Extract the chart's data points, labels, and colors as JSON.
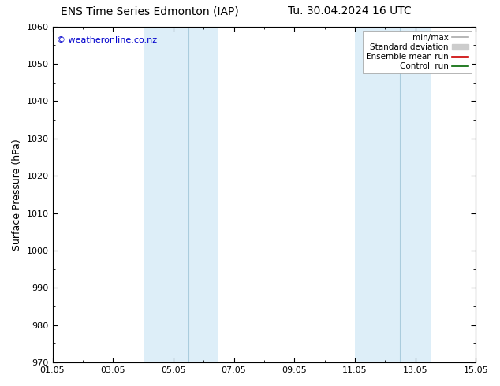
{
  "title_left": "ENS Time Series Edmonton (IAP)",
  "title_right": "Tu. 30.04.2024 16 UTC",
  "ylabel": "Surface Pressure (hPa)",
  "ylim": [
    970,
    1060
  ],
  "yticks": [
    970,
    980,
    990,
    1000,
    1010,
    1020,
    1030,
    1040,
    1050,
    1060
  ],
  "xlim": [
    0,
    14
  ],
  "xtick_labels": [
    "01.05",
    "03.05",
    "05.05",
    "07.05",
    "09.05",
    "11.05",
    "13.05",
    "15.05"
  ],
  "xtick_positions": [
    0,
    2,
    4,
    6,
    8,
    10,
    12,
    14
  ],
  "shade_bands": [
    {
      "start": 3.0,
      "end": 5.5,
      "color": "#ddeef8"
    },
    {
      "start": 10.0,
      "end": 12.5,
      "color": "#ddeef8"
    }
  ],
  "divider_lines": [
    4.5,
    11.5
  ],
  "divider_color": "#aaccdd",
  "copyright_text": "© weatheronline.co.nz",
  "copyright_color": "#0000cc",
  "background_color": "#ffffff",
  "legend_entries": [
    {
      "label": "min/max",
      "color": "#aaaaaa",
      "lw": 1.2
    },
    {
      "label": "Standard deviation",
      "color": "#cccccc",
      "lw": 5
    },
    {
      "label": "Ensemble mean run",
      "color": "#cc0000",
      "lw": 1.2
    },
    {
      "label": "Controll run",
      "color": "#006600",
      "lw": 1.2
    }
  ],
  "title_fontsize": 10,
  "ylabel_fontsize": 9,
  "tick_fontsize": 8,
  "copyright_fontsize": 8,
  "legend_fontsize": 7.5
}
